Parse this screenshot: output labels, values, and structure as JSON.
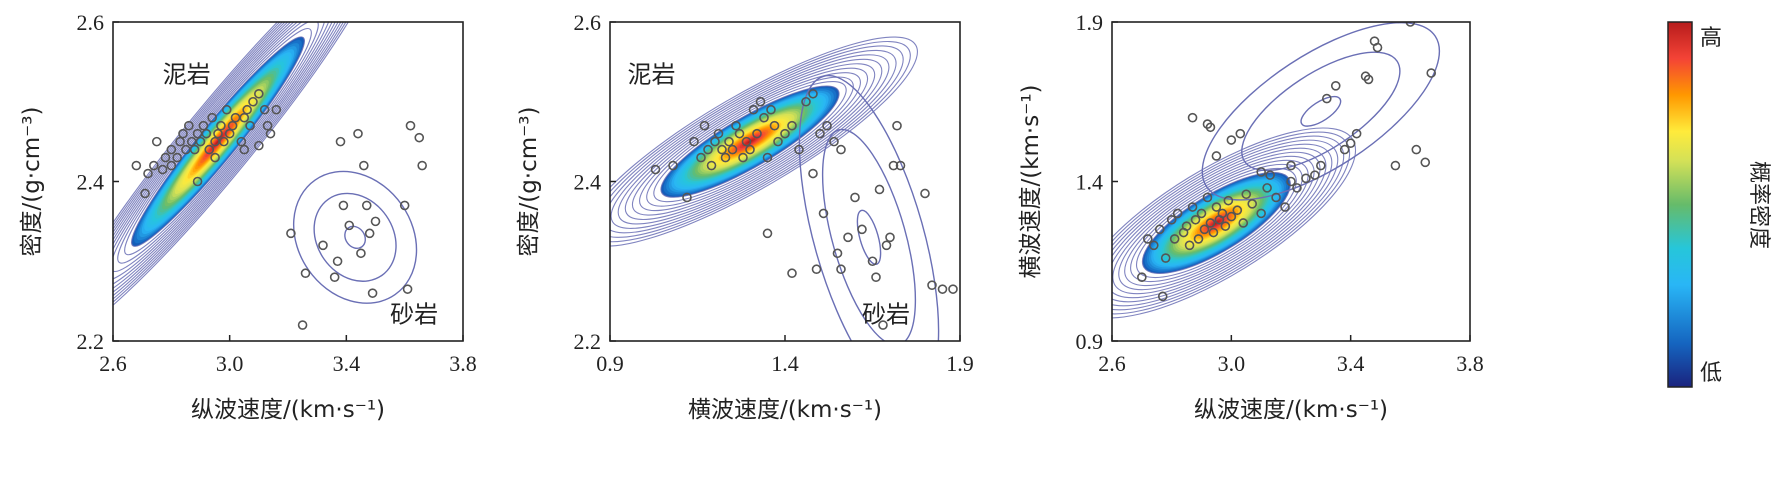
{
  "colors": {
    "contour": "#6a6fb5",
    "point_stroke": "#555555",
    "axis": "#222222",
    "colormap": [
      "#1a237e",
      "#1565c0",
      "#29b6f6",
      "#26c6da",
      "#66bb6a",
      "#d4e157",
      "#ffeb3b",
      "#ff9800",
      "#f44336",
      "#b71c1c"
    ]
  },
  "colorbar": {
    "high": "高",
    "low": "低",
    "label": "概率密度"
  },
  "chart_data": [
    {
      "type": "scatter",
      "xlabel": "纵波速度/(km·s⁻¹)",
      "ylabel": "密度/(g·cm⁻³)",
      "xlim": [
        2.6,
        3.8
      ],
      "ylim": [
        2.2,
        2.6
      ],
      "xticks": [
        "2.6",
        "3.0",
        "3.4",
        "3.8"
      ],
      "yticks": [
        "2.2",
        "2.4",
        "2.6"
      ],
      "annotations": [
        {
          "text": "泥岩",
          "x": 2.77,
          "y": 2.524
        },
        {
          "text": "砂岩",
          "x": 3.55,
          "y": 2.223
        }
      ],
      "density": [
        {
          "cx": 2.96,
          "cy": 2.45,
          "rx": 0.32,
          "ry": 0.025,
          "angle": 0.42,
          "peak": 1.0
        },
        {
          "cx": 3.43,
          "cy": 2.33,
          "rx": 0.11,
          "ry": 0.06,
          "angle": 0.25,
          "peak": 0.12
        }
      ],
      "points": [
        [
          2.68,
          2.42
        ],
        [
          2.71,
          2.385
        ],
        [
          2.72,
          2.41
        ],
        [
          2.74,
          2.42
        ],
        [
          2.75,
          2.45
        ],
        [
          2.77,
          2.415
        ],
        [
          2.78,
          2.43
        ],
        [
          2.8,
          2.44
        ],
        [
          2.82,
          2.43
        ],
        [
          2.83,
          2.45
        ],
        [
          2.84,
          2.46
        ],
        [
          2.85,
          2.44
        ],
        [
          2.86,
          2.47
        ],
        [
          2.87,
          2.45
        ],
        [
          2.88,
          2.44
        ],
        [
          2.89,
          2.46
        ],
        [
          2.9,
          2.45
        ],
        [
          2.91,
          2.47
        ],
        [
          2.92,
          2.46
        ],
        [
          2.93,
          2.44
        ],
        [
          2.94,
          2.48
        ],
        [
          2.95,
          2.45
        ],
        [
          2.96,
          2.46
        ],
        [
          2.97,
          2.47
        ],
        [
          2.98,
          2.45
        ],
        [
          2.99,
          2.49
        ],
        [
          3.0,
          2.46
        ],
        [
          3.01,
          2.47
        ],
        [
          3.02,
          2.48
        ],
        [
          3.04,
          2.45
        ],
        [
          3.05,
          2.48
        ],
        [
          3.06,
          2.49
        ],
        [
          3.07,
          2.47
        ],
        [
          3.08,
          2.5
        ],
        [
          3.1,
          2.51
        ],
        [
          3.12,
          2.49
        ],
        [
          3.13,
          2.47
        ],
        [
          3.14,
          2.46
        ],
        [
          3.16,
          2.49
        ],
        [
          2.89,
          2.4
        ],
        [
          2.8,
          2.42
        ],
        [
          2.95,
          2.43
        ],
        [
          3.05,
          2.44
        ],
        [
          3.1,
          2.445
        ],
        [
          3.21,
          2.335
        ],
        [
          3.26,
          2.285
        ],
        [
          3.25,
          2.22
        ],
        [
          3.32,
          2.32
        ],
        [
          3.36,
          2.28
        ],
        [
          3.37,
          2.3
        ],
        [
          3.38,
          2.45
        ],
        [
          3.39,
          2.37
        ],
        [
          3.41,
          2.345
        ],
        [
          3.44,
          2.46
        ],
        [
          3.45,
          2.31
        ],
        [
          3.46,
          2.42
        ],
        [
          3.47,
          2.37
        ],
        [
          3.48,
          2.335
        ],
        [
          3.49,
          2.26
        ],
        [
          3.5,
          2.35
        ],
        [
          3.6,
          2.37
        ],
        [
          3.61,
          2.265
        ],
        [
          3.62,
          2.47
        ],
        [
          3.65,
          2.455
        ],
        [
          3.66,
          2.42
        ]
      ]
    },
    {
      "type": "scatter",
      "xlabel": "横波速度/(km·s⁻¹)",
      "ylabel": "密度/(g·cm⁻³)",
      "xlim": [
        0.9,
        1.9
      ],
      "ylim": [
        2.2,
        2.6
      ],
      "xticks": [
        "0.9",
        "1.4",
        "1.9"
      ],
      "yticks": [
        "2.2",
        "2.4",
        "2.6"
      ],
      "annotations": [
        {
          "text": "泥岩",
          "x": 0.95,
          "y": 2.524
        },
        {
          "text": "砂岩",
          "x": 1.62,
          "y": 2.223
        }
      ],
      "density": [
        {
          "cx": 1.3,
          "cy": 2.45,
          "rx": 0.26,
          "ry": 0.032,
          "angle": 0.25,
          "peak": 1.0
        },
        {
          "cx": 1.64,
          "cy": 2.33,
          "rx": 0.16,
          "ry": 0.07,
          "angle": -1.0,
          "peak": 0.1
        }
      ],
      "points": [
        [
          1.03,
          2.415
        ],
        [
          1.08,
          2.42
        ],
        [
          1.12,
          2.38
        ],
        [
          1.14,
          2.45
        ],
        [
          1.16,
          2.43
        ],
        [
          1.17,
          2.47
        ],
        [
          1.18,
          2.44
        ],
        [
          1.19,
          2.42
        ],
        [
          1.2,
          2.45
        ],
        [
          1.21,
          2.46
        ],
        [
          1.22,
          2.44
        ],
        [
          1.23,
          2.43
        ],
        [
          1.24,
          2.45
        ],
        [
          1.25,
          2.44
        ],
        [
          1.26,
          2.47
        ],
        [
          1.27,
          2.46
        ],
        [
          1.28,
          2.43
        ],
        [
          1.29,
          2.45
        ],
        [
          1.3,
          2.44
        ],
        [
          1.31,
          2.49
        ],
        [
          1.32,
          2.46
        ],
        [
          1.33,
          2.5
        ],
        [
          1.34,
          2.48
        ],
        [
          1.35,
          2.43
        ],
        [
          1.36,
          2.49
        ],
        [
          1.37,
          2.47
        ],
        [
          1.38,
          2.45
        ],
        [
          1.4,
          2.46
        ],
        [
          1.42,
          2.47
        ],
        [
          1.44,
          2.44
        ],
        [
          1.46,
          2.5
        ],
        [
          1.48,
          2.51
        ],
        [
          1.5,
          2.46
        ],
        [
          1.52,
          2.47
        ],
        [
          1.54,
          2.45
        ],
        [
          1.56,
          2.44
        ],
        [
          1.35,
          2.335
        ],
        [
          1.42,
          2.285
        ],
        [
          1.48,
          2.41
        ],
        [
          1.49,
          2.29
        ],
        [
          1.51,
          2.36
        ],
        [
          1.55,
          2.31
        ],
        [
          1.56,
          2.29
        ],
        [
          1.58,
          2.33
        ],
        [
          1.6,
          2.38
        ],
        [
          1.62,
          2.34
        ],
        [
          1.65,
          2.3
        ],
        [
          1.66,
          2.28
        ],
        [
          1.67,
          2.39
        ],
        [
          1.69,
          2.32
        ],
        [
          1.7,
          2.33
        ],
        [
          1.71,
          2.42
        ],
        [
          1.72,
          2.47
        ],
        [
          1.73,
          2.42
        ],
        [
          1.8,
          2.385
        ],
        [
          1.82,
          2.27
        ],
        [
          1.85,
          2.265
        ],
        [
          1.88,
          2.265
        ],
        [
          1.68,
          2.22
        ]
      ]
    },
    {
      "type": "scatter",
      "xlabel": "纵波速度/(km·s⁻¹)",
      "ylabel": "横波速度/(km·s⁻¹)",
      "xlim": [
        2.6,
        3.8
      ],
      "ylim": [
        0.9,
        1.9
      ],
      "xticks": [
        "2.6",
        "3.0",
        "3.4",
        "3.8"
      ],
      "yticks": [
        "0.9",
        "1.4",
        "1.9"
      ],
      "annotations": [],
      "density": [
        {
          "cx": 2.95,
          "cy": 1.27,
          "rx": 0.28,
          "ry": 0.09,
          "angle": 0.52,
          "peak": 1.0
        },
        {
          "cx": 3.3,
          "cy": 1.62,
          "rx": 0.3,
          "ry": 0.12,
          "angle": 0.55,
          "peak": 0.1
        }
      ],
      "points": [
        [
          2.7,
          1.1
        ],
        [
          2.72,
          1.22
        ],
        [
          2.74,
          1.2
        ],
        [
          2.76,
          1.25
        ],
        [
          2.77,
          1.04
        ],
        [
          2.78,
          1.16
        ],
        [
          2.8,
          1.28
        ],
        [
          2.81,
          1.22
        ],
        [
          2.82,
          1.3
        ],
        [
          2.84,
          1.24
        ],
        [
          2.85,
          1.26
        ],
        [
          2.86,
          1.2
        ],
        [
          2.87,
          1.32
        ],
        [
          2.88,
          1.28
        ],
        [
          2.89,
          1.22
        ],
        [
          2.9,
          1.3
        ],
        [
          2.91,
          1.25
        ],
        [
          2.92,
          1.35
        ],
        [
          2.93,
          1.27
        ],
        [
          2.94,
          1.24
        ],
        [
          2.95,
          1.32
        ],
        [
          2.96,
          1.28
        ],
        [
          2.97,
          1.3
        ],
        [
          2.98,
          1.26
        ],
        [
          2.99,
          1.34
        ],
        [
          3.0,
          1.29
        ],
        [
          3.02,
          1.31
        ],
        [
          3.04,
          1.27
        ],
        [
          3.05,
          1.36
        ],
        [
          3.07,
          1.33
        ],
        [
          3.1,
          1.3
        ],
        [
          3.12,
          1.38
        ],
        [
          3.15,
          1.35
        ],
        [
          3.18,
          1.32
        ],
        [
          3.2,
          1.4
        ],
        [
          3.22,
          1.38
        ],
        [
          2.87,
          1.6
        ],
        [
          2.92,
          1.58
        ],
        [
          2.93,
          1.57
        ],
        [
          2.95,
          1.48
        ],
        [
          3.0,
          1.53
        ],
        [
          3.03,
          1.55
        ],
        [
          3.1,
          1.43
        ],
        [
          3.13,
          1.42
        ],
        [
          3.2,
          1.45
        ],
        [
          3.25,
          1.41
        ],
        [
          3.28,
          1.42
        ],
        [
          3.3,
          1.45
        ],
        [
          3.32,
          1.66
        ],
        [
          3.35,
          1.7
        ],
        [
          3.38,
          1.5
        ],
        [
          3.4,
          1.52
        ],
        [
          3.42,
          1.55
        ],
        [
          3.45,
          1.73
        ],
        [
          3.46,
          1.72
        ],
        [
          3.48,
          1.84
        ],
        [
          3.49,
          1.82
        ],
        [
          3.55,
          1.45
        ],
        [
          3.6,
          1.9
        ],
        [
          3.62,
          1.5
        ],
        [
          3.65,
          1.46
        ],
        [
          3.67,
          1.74
        ]
      ]
    }
  ]
}
